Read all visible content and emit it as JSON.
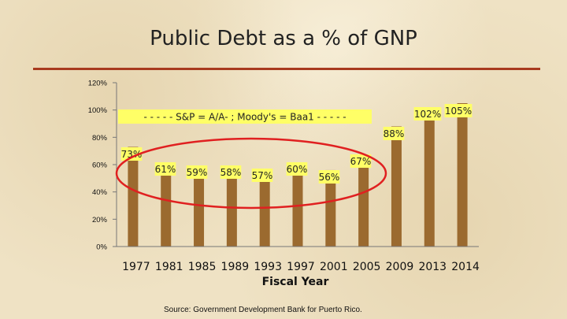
{
  "slide": {
    "title": "Public Debt as a % of GNP",
    "source": "Source: Government Development Bank for Puerto Rico."
  },
  "colors": {
    "bar": "#9b6a2f",
    "label_box": "#ffff66",
    "circle": "#e02020",
    "title_rule": "#a83a1f"
  },
  "chart_data": {
    "type": "bar",
    "title": "Public Debt as a % of GNP",
    "xlabel": "Fiscal Year",
    "ylabel": "",
    "ylim": [
      0,
      120
    ],
    "yticks": [
      "0%",
      "20%",
      "40%",
      "60%",
      "80%",
      "100%",
      "120%"
    ],
    "categories": [
      "1977",
      "1981",
      "1985",
      "1989",
      "1993",
      "1997",
      "2001",
      "2005",
      "2009",
      "2013",
      "2014"
    ],
    "values": [
      73,
      61,
      59,
      58,
      57,
      60,
      56,
      67,
      88,
      102,
      105
    ],
    "data_labels": [
      "73%",
      "61%",
      "59%",
      "58%",
      "57%",
      "60%",
      "56%",
      "67%",
      "88%",
      "102%",
      "105%"
    ],
    "grid": false,
    "annotation": "- - - - -  S&P  =  A/A-  ;  Moody's  =  Baa1   - - - - -",
    "highlight": "ellipse around 1977–2005"
  }
}
